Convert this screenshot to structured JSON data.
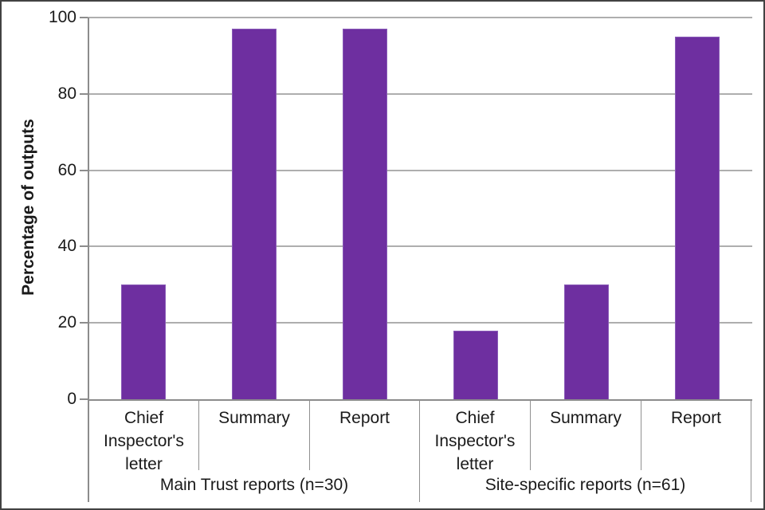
{
  "chart_data": {
    "type": "bar",
    "title": "",
    "xlabel": "",
    "ylabel": "Percentage of outputs",
    "ylim": [
      0,
      100
    ],
    "yticks": [
      0,
      20,
      40,
      60,
      80,
      100
    ],
    "grid": "horizontal",
    "legend": "none",
    "bar_color": "#6E2FA0",
    "bar_border_color": "#8A5CB8",
    "groups": [
      {
        "label": "Main Trust reports (n=30)",
        "categories": [
          "Chief Inspector's letter",
          "Summary",
          "Report"
        ],
        "values": [
          30,
          97,
          97
        ]
      },
      {
        "label": "Site-specific reports (n=61)",
        "categories": [
          "Chief Inspector's letter",
          "Summary",
          "Report"
        ],
        "values": [
          18,
          30,
          95
        ]
      }
    ]
  }
}
